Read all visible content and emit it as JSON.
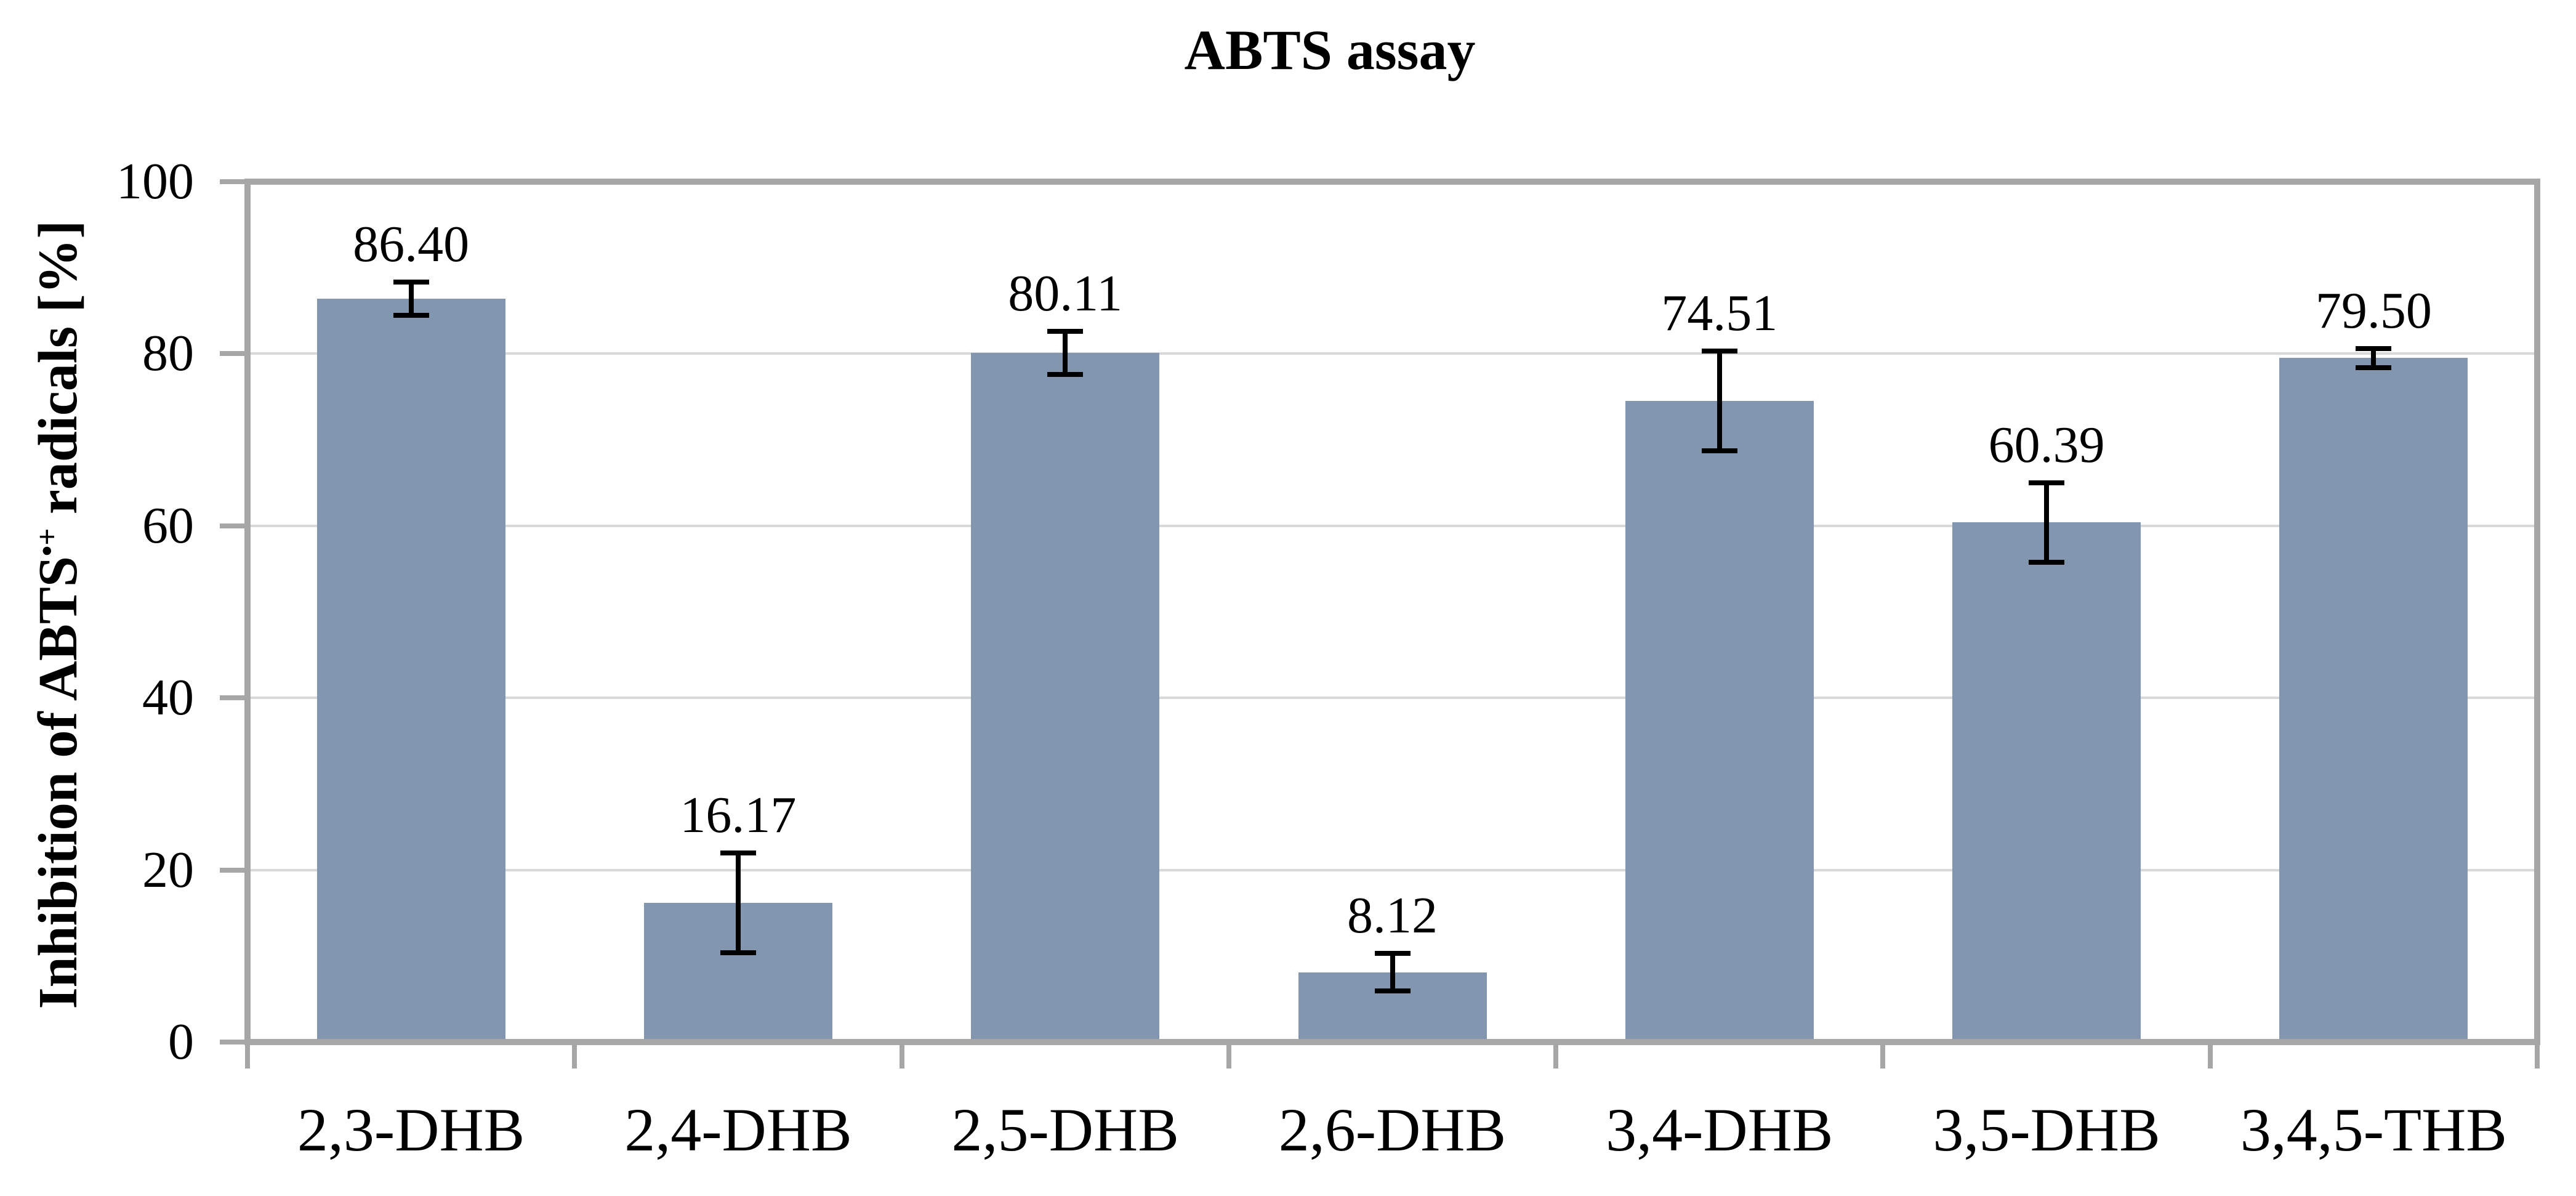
{
  "chart_data": {
    "type": "bar",
    "title": "ABTS assay",
    "y_axis_title_prefix": "Inhibition of ABTS",
    "y_axis_title_superscript": "•+",
    "y_axis_title_suffix": " radicals [%]",
    "categories": [
      "2,3-DHB",
      "2,4-DHB",
      "2,5-DHB",
      "2,6-DHB",
      "3,4-DHB",
      "3,5-DHB",
      "3,4,5-THB"
    ],
    "values": [
      86.4,
      16.17,
      80.11,
      8.12,
      74.51,
      60.39,
      79.5
    ],
    "value_labels": [
      "86.40",
      "16.17",
      "80.11",
      "8.12",
      "74.51",
      "60.39",
      "79.50"
    ],
    "errors": [
      1.9,
      5.8,
      2.5,
      2.2,
      5.8,
      4.6,
      1.1
    ],
    "y_ticks": [
      0,
      20,
      40,
      60,
      80,
      100
    ],
    "ylim": [
      0,
      100
    ],
    "grid": true,
    "legend_position": "none",
    "colors": {
      "bar_fill": "#8396AF",
      "gridline": "#D9D9D9",
      "axis_border": "#A6A6A6",
      "error_bar": "#000000",
      "text": "#000000",
      "background": "#FFFFFF"
    }
  }
}
